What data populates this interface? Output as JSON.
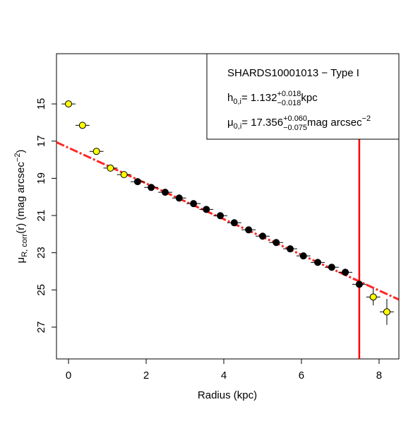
{
  "chart_data": {
    "type": "scatter",
    "x_label": "Radius (kpc)",
    "y_label": {
      "symbol": "μ",
      "sub": "R, corr",
      "text": "(r) (mag arcsec",
      "sup": "−2",
      "close": ")"
    },
    "xlim": [
      -0.31,
      8.51
    ],
    "ylim": [
      28.71,
      12.3
    ],
    "xticks": [
      0,
      2,
      4,
      6,
      8
    ],
    "yticks": [
      15,
      17,
      19,
      21,
      23,
      25,
      27
    ],
    "series": [
      {
        "color": "#ffff00",
        "x": [
          0,
          0.36,
          0.72,
          1.08,
          1.43,
          7.85,
          8.2
        ],
        "y": [
          15.0,
          16.15,
          17.55,
          18.45,
          18.8,
          25.38,
          26.18
        ],
        "xerr": [
          0.18,
          0.18,
          0.18,
          0.18,
          0.18,
          0.18,
          0.18
        ],
        "yerr": [
          0.05,
          0.05,
          0.05,
          0.05,
          0.08,
          0.45,
          0.7
        ]
      },
      {
        "color": "#000000",
        "x": [
          1.78,
          2.13,
          2.49,
          2.85,
          3.22,
          3.55,
          3.91,
          4.27,
          4.64,
          5.0,
          5.35,
          5.71,
          6.05,
          6.42,
          6.78,
          7.13,
          7.49
        ],
        "y": [
          19.18,
          19.49,
          19.75,
          20.06,
          20.36,
          20.67,
          21.01,
          21.39,
          21.77,
          22.11,
          22.45,
          22.79,
          23.17,
          23.52,
          23.78,
          24.05,
          24.7
        ],
        "xerr": [
          0.18,
          0.18,
          0.18,
          0.18,
          0.18,
          0.18,
          0.18,
          0.18,
          0.18,
          0.18,
          0.18,
          0.18,
          0.18,
          0.18,
          0.18,
          0.18,
          0.18
        ],
        "yerr": [
          0.08,
          0.08,
          0.08,
          0.08,
          0.08,
          0.08,
          0.08,
          0.08,
          0.08,
          0.08,
          0.08,
          0.08,
          0.1,
          0.1,
          0.12,
          0.2,
          0.15
        ]
      }
    ],
    "fit": {
      "color": "#ff0000",
      "x": [
        -0.31,
        8.51
      ],
      "y": [
        17.06,
        25.52
      ]
    },
    "cutoff": {
      "color": "#ff0000",
      "x": 7.49
    },
    "annotation": {
      "title": "SHARDS10001013  − Type I",
      "h": {
        "symbol": "h",
        "sub": "0,i",
        "eq": " = 1.132",
        "plus": "+0.018",
        "minus": "−0.018",
        "unit": " kpc"
      },
      "mu": {
        "symbol": "μ",
        "sub": "0,i",
        "eq": " = 17.356",
        "plus": "+0.060",
        "minus": "−0.075",
        "unit": " mag arcsec",
        "unit_sup": "−2"
      }
    }
  }
}
